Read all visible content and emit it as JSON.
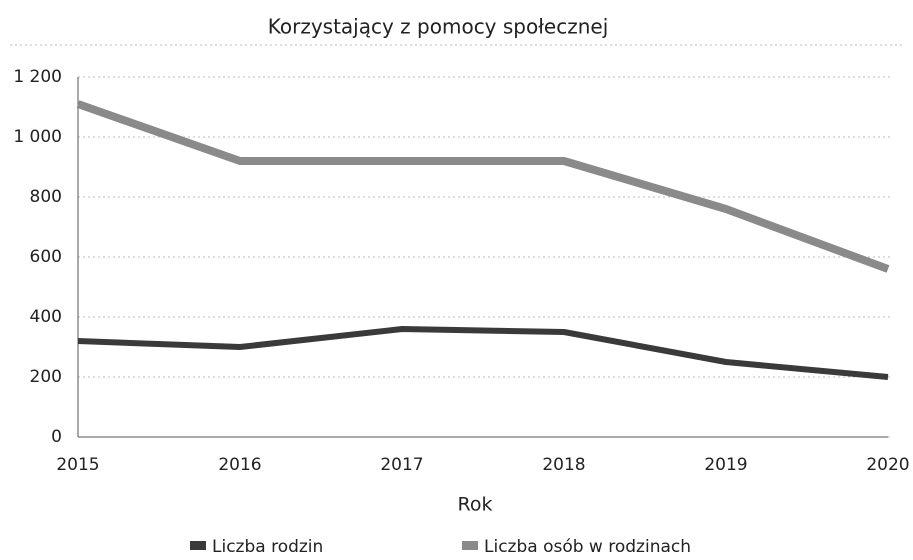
{
  "chart_data": {
    "type": "line",
    "title": "Korzystający z pomocy społecznej",
    "x_label": "Rok",
    "categories": [
      "2015",
      "2016",
      "2017",
      "2018",
      "2019",
      "2020"
    ],
    "series": [
      {
        "name": "Liczba rodzin",
        "color": "#3a3a3a",
        "values": [
          320,
          300,
          360,
          350,
          250,
          200
        ]
      },
      {
        "name": "Liczba osób w rodzinach",
        "color": "#8a8a8a",
        "values": [
          1110,
          920,
          920,
          920,
          760,
          560
        ]
      }
    ],
    "ylim": [
      0,
      1200
    ],
    "yticks": [
      0,
      200,
      400,
      600,
      800,
      {
        "value": 1000,
        "label": "1 000"
      },
      {
        "value": 1200,
        "label": "1 200"
      }
    ],
    "grid": true,
    "legend": "bottom"
  }
}
